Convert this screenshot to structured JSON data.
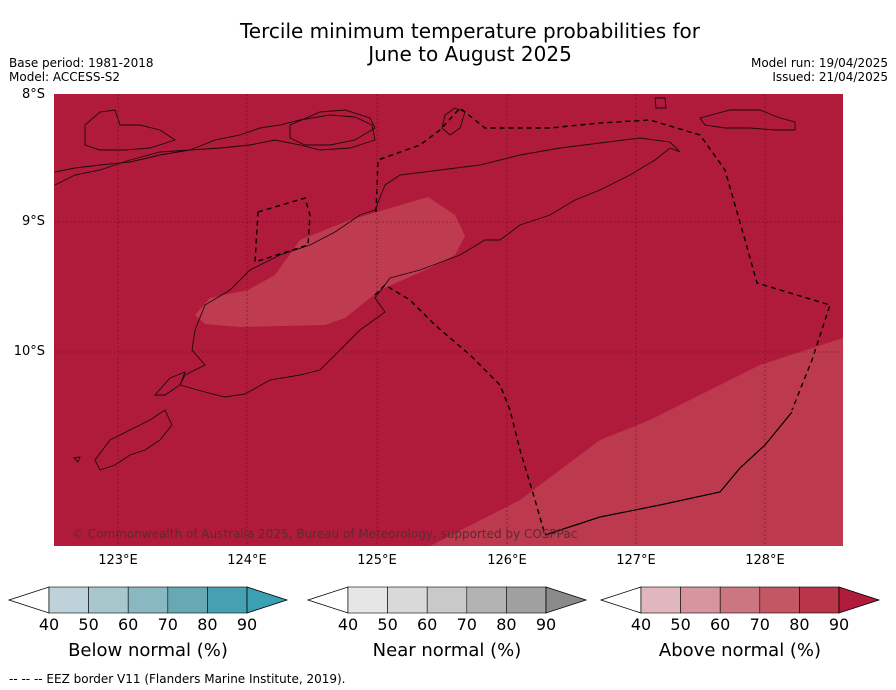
{
  "title_line1": "Tercile minimum temperature probabilities for",
  "title_line2": "June to August 2025",
  "meta": {
    "base_period": "Base period: 1981-2018",
    "model": "Model: ACCESS-S2",
    "model_run": "Model run: 19/04/2025",
    "issued": "Issued: 21/04/2025"
  },
  "credit": "© Commonwealth of Australia 2025, Bureau of Meteorology, supported by COSPPac",
  "footer": "--  --  -- EEZ border V11 (Flanders Marine Institute, 2019).",
  "lat_labels": [
    "8°S",
    "9°S",
    "10°S"
  ],
  "lon_labels": [
    "123°E",
    "124°E",
    "125°E",
    "126°E",
    "127°E",
    "128°E"
  ],
  "colorbars": [
    {
      "label": "Below normal (%)",
      "ticks": [
        "40",
        "50",
        "60",
        "70",
        "80",
        "90"
      ],
      "colors": [
        "#ffffff",
        "#bdd3d9",
        "#a6c7cc",
        "#89b8c0",
        "#68a8b4",
        "#45a0b1",
        "#3aa0b3"
      ]
    },
    {
      "label": "Near normal (%)",
      "ticks": [
        "40",
        "50",
        "60",
        "70",
        "80",
        "90"
      ],
      "colors": [
        "#ffffff",
        "#e6e6e6",
        "#d9d9d9",
        "#c9c9c9",
        "#b3b3b3",
        "#a0a0a0",
        "#8a8a8a"
      ]
    },
    {
      "label": "Above normal (%)",
      "ticks": [
        "40",
        "50",
        "60",
        "70",
        "80",
        "90"
      ],
      "colors": [
        "#ffffff",
        "#e1b6be",
        "#d6959f",
        "#cb7680",
        "#c35764",
        "#b93549",
        "#b01b3b"
      ]
    }
  ],
  "map_colors": {
    "high": "#b01b3b",
    "mid": "#b93549",
    "light": "#bf3c50"
  }
}
